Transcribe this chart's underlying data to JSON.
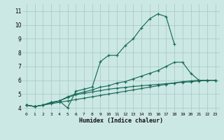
{
  "xlabel": "Humidex (Indice chaleur)",
  "xlim": [
    -0.5,
    23.5
  ],
  "ylim": [
    3.7,
    11.5
  ],
  "xticks": [
    0,
    1,
    2,
    3,
    4,
    5,
    6,
    7,
    8,
    9,
    10,
    11,
    12,
    13,
    14,
    15,
    16,
    17,
    18,
    19,
    20,
    21,
    22,
    23
  ],
  "yticks": [
    4,
    5,
    6,
    7,
    8,
    9,
    10,
    11
  ],
  "bg_color": "#cce8e4",
  "grid_color": "#aaccca",
  "line_color": "#1a6b5a",
  "series": [
    {
      "x": [
        0,
        1,
        2,
        3,
        4,
        5,
        6,
        7,
        8,
        9,
        10,
        11,
        12,
        13,
        14,
        15,
        16,
        17,
        18
      ],
      "y": [
        4.2,
        4.1,
        4.2,
        4.4,
        4.5,
        4.0,
        5.2,
        5.35,
        5.5,
        7.35,
        7.8,
        7.8,
        8.5,
        9.0,
        9.8,
        10.45,
        10.8,
        10.6,
        8.6
      ]
    },
    {
      "x": [
        0,
        1,
        2,
        3,
        4,
        5,
        6,
        7,
        8,
        9,
        10,
        11,
        12,
        13,
        14,
        15,
        16,
        17,
        18,
        19,
        20,
        21,
        22,
        23
      ],
      "y": [
        4.2,
        4.1,
        4.2,
        4.4,
        4.5,
        4.8,
        5.0,
        5.15,
        5.3,
        5.5,
        5.6,
        5.8,
        5.9,
        6.1,
        6.3,
        6.5,
        6.7,
        7.0,
        7.3,
        7.3,
        6.5,
        6.0,
        6.0,
        6.0
      ]
    },
    {
      "x": [
        0,
        1,
        2,
        3,
        4,
        5,
        6,
        7,
        8,
        9,
        10,
        11,
        12,
        13,
        14,
        15,
        16,
        17,
        18,
        19,
        20,
        21,
        22,
        23
      ],
      "y": [
        4.2,
        4.1,
        4.2,
        4.3,
        4.4,
        4.5,
        4.6,
        4.7,
        4.8,
        4.9,
        5.0,
        5.1,
        5.2,
        5.3,
        5.4,
        5.5,
        5.6,
        5.7,
        5.8,
        5.9,
        5.95,
        6.0,
        6.0,
        6.0
      ]
    },
    {
      "x": [
        0,
        1,
        2,
        3,
        4,
        5,
        6,
        7,
        8,
        9,
        10,
        11,
        12,
        13,
        14,
        15,
        16,
        17,
        18,
        19,
        20,
        21,
        22,
        23
      ],
      "y": [
        4.2,
        4.1,
        4.2,
        4.35,
        4.5,
        4.75,
        4.95,
        5.05,
        5.15,
        5.25,
        5.35,
        5.42,
        5.48,
        5.55,
        5.6,
        5.65,
        5.7,
        5.75,
        5.8,
        5.85,
        5.88,
        5.95,
        5.98,
        6.0
      ]
    }
  ]
}
